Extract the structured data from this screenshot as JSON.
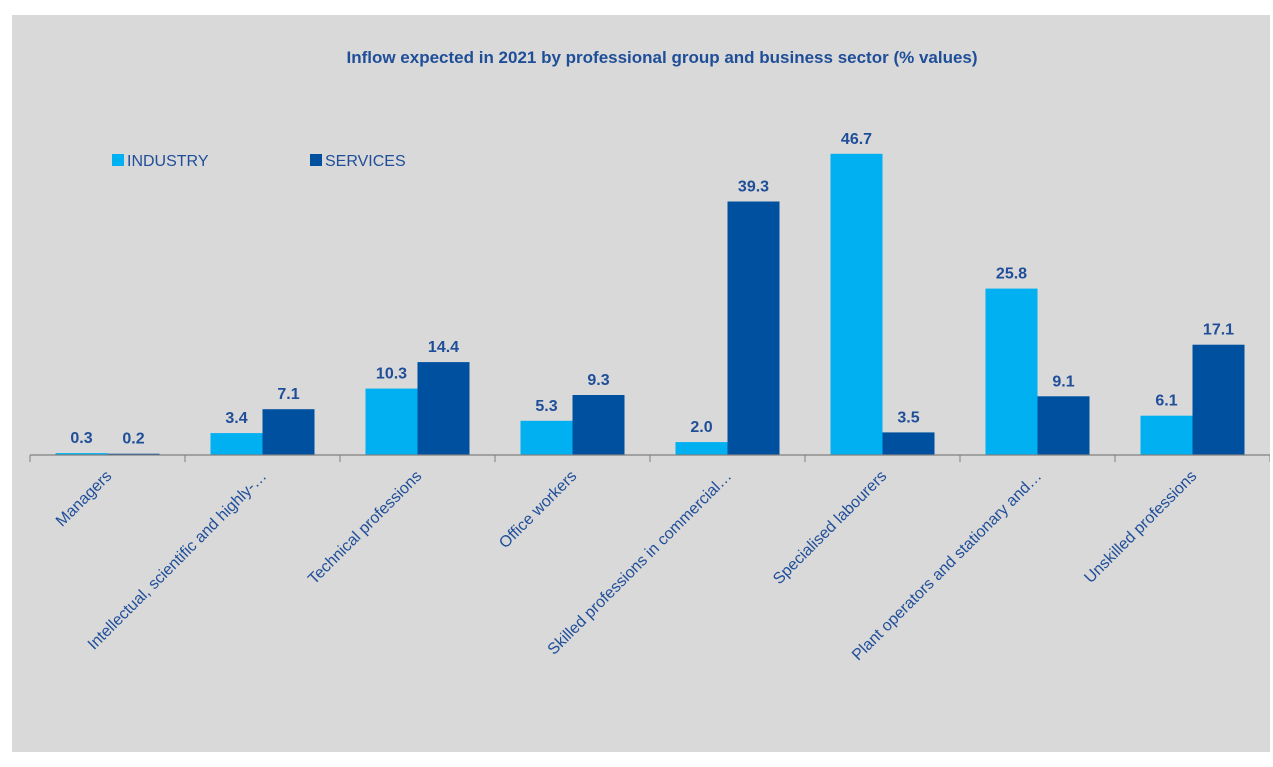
{
  "chart_data": {
    "type": "bar",
    "title": "Inflow expected in 2021 by professional group and business sector (% values)",
    "xlabel": "",
    "ylabel": "",
    "ylim": [
      0,
      50
    ],
    "grid": false,
    "legend_position": "top-left",
    "categories": [
      "Managers",
      "Intellectual, scientific and highly-…",
      "Technical professions",
      "Office workers",
      "Skilled professions in commercial…",
      "Specialised labourers",
      "Plant operators and stationary and…",
      "Unskilled professions"
    ],
    "series": [
      {
        "name": "INDUSTRY",
        "color": "#00b0f0",
        "values": [
          0.3,
          3.4,
          10.3,
          5.3,
          2.0,
          46.7,
          25.8,
          6.1
        ]
      },
      {
        "name": "SERVICES",
        "color": "#0050a0",
        "values": [
          0.2,
          7.1,
          14.4,
          9.3,
          39.3,
          3.5,
          9.1,
          17.1
        ]
      }
    ]
  },
  "colors": {
    "background": "#d9d9d9",
    "text": "#1f4e99",
    "axis": "#808080"
  }
}
